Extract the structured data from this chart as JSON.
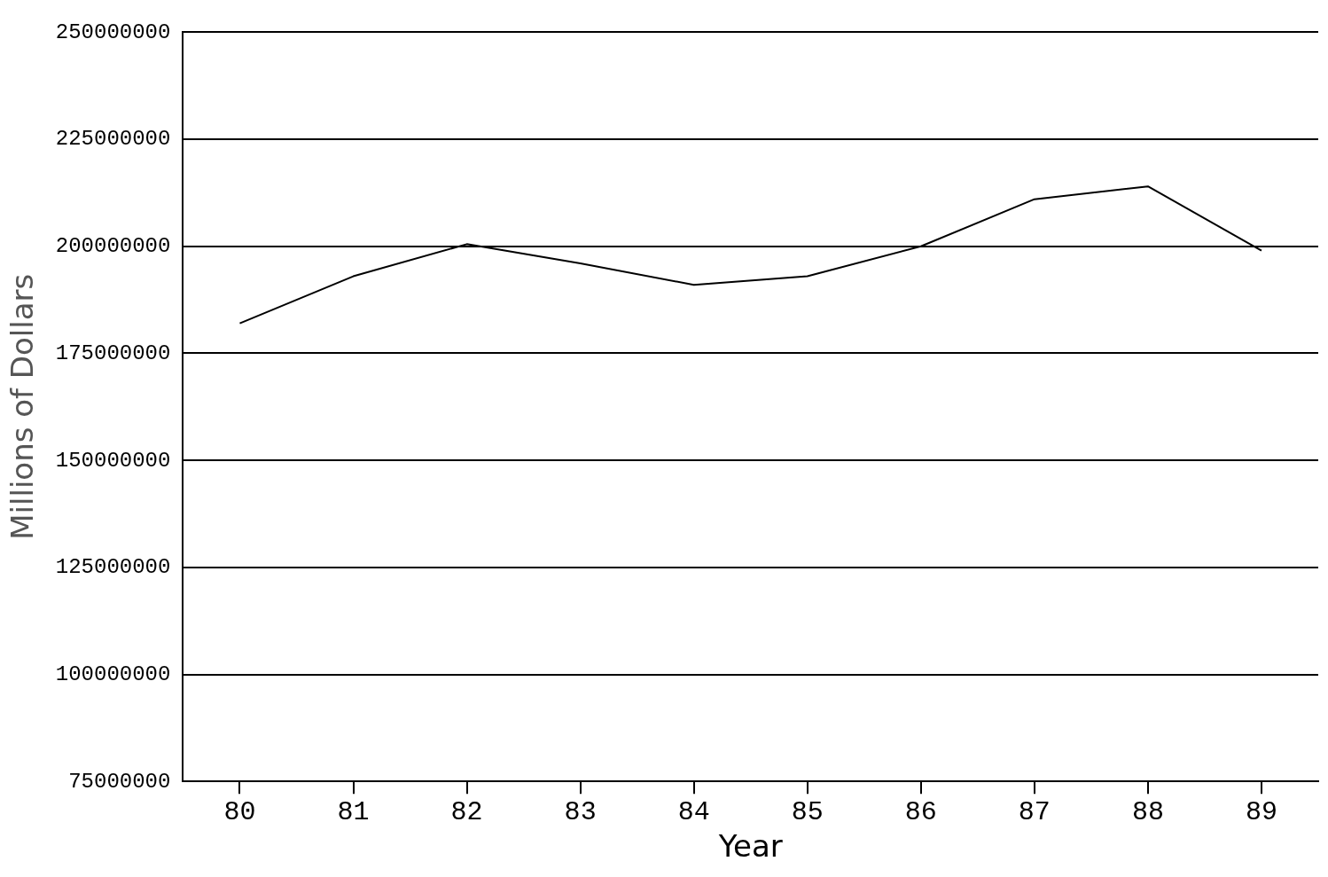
{
  "chart_data": {
    "type": "line",
    "xlabel": "Year",
    "ylabel": "Millions of Dollars",
    "x": [
      80,
      81,
      82,
      83,
      84,
      85,
      86,
      87,
      88,
      89
    ],
    "series": [
      {
        "color": "#000000",
        "values": [
          182000000,
          193000000,
          200500000,
          196000000,
          191000000,
          193000000,
          200000000,
          211000000,
          214000000,
          199000000
        ]
      }
    ],
    "xlim": [
      79.5,
      89.5
    ],
    "xticks": [
      80,
      81,
      82,
      83,
      84,
      85,
      86,
      87,
      88,
      89
    ],
    "ylim": [
      75000000,
      250000000
    ],
    "yticks": [
      75000000,
      100000000,
      125000000,
      150000000,
      175000000,
      200000000,
      225000000,
      250000000
    ],
    "grid": "y",
    "legend": false,
    "marker": "none",
    "line_style": "solid"
  }
}
